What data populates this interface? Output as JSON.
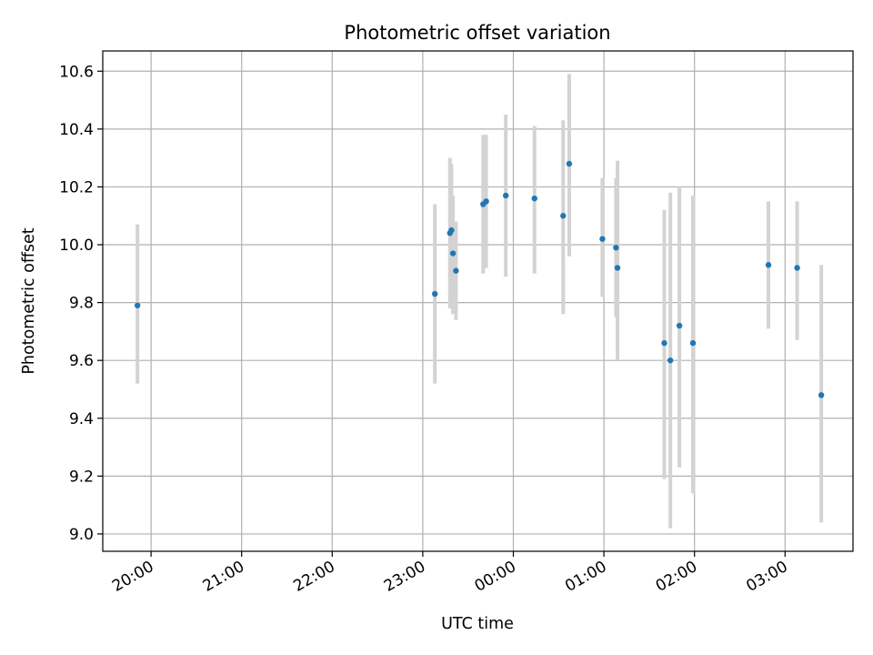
{
  "chart_data": {
    "type": "scatter",
    "title": "Photometric offset variation",
    "xlabel": "UTC time",
    "ylabel": "Photometric offset",
    "xlim": [
      "19:28",
      "03:45"
    ],
    "ylim": [
      8.94,
      10.67
    ],
    "grid": true,
    "x_ticks": [
      "20:00",
      "21:00",
      "22:00",
      "23:00",
      "00:00",
      "01:00",
      "02:00",
      "03:00"
    ],
    "y_ticks": [
      "9.0",
      "9.2",
      "9.4",
      "9.6",
      "9.8",
      "10.0",
      "10.2",
      "10.4",
      "10.6"
    ],
    "colors": {
      "point": "#1f77b4",
      "errorbar": "#d3d3d3",
      "grid": "#b0b0b0"
    },
    "series": [
      {
        "points": [
          {
            "t": "19:51",
            "y": 9.79,
            "lo": 9.52,
            "hi": 10.07
          },
          {
            "t": "23:08",
            "y": 9.83,
            "lo": 9.52,
            "hi": 10.14
          },
          {
            "t": "23:18",
            "y": 10.04,
            "lo": 9.78,
            "hi": 10.3
          },
          {
            "t": "23:19",
            "y": 10.05,
            "lo": 9.8,
            "hi": 10.28
          },
          {
            "t": "23:20",
            "y": 9.97,
            "lo": 9.76,
            "hi": 10.17
          },
          {
            "t": "23:22",
            "y": 9.91,
            "lo": 9.74,
            "hi": 10.08
          },
          {
            "t": "23:40",
            "y": 10.14,
            "lo": 9.9,
            "hi": 10.38
          },
          {
            "t": "23:42",
            "y": 10.15,
            "lo": 9.92,
            "hi": 10.38
          },
          {
            "t": "23:55",
            "y": 10.17,
            "lo": 9.89,
            "hi": 10.45
          },
          {
            "t": "00:14",
            "y": 10.16,
            "lo": 9.9,
            "hi": 10.41
          },
          {
            "t": "00:33",
            "y": 10.1,
            "lo": 9.76,
            "hi": 10.43
          },
          {
            "t": "00:37",
            "y": 10.28,
            "lo": 9.96,
            "hi": 10.59
          },
          {
            "t": "00:59",
            "y": 10.02,
            "lo": 9.82,
            "hi": 10.23
          },
          {
            "t": "01:08",
            "y": 9.99,
            "lo": 9.75,
            "hi": 10.23
          },
          {
            "t": "01:09",
            "y": 9.92,
            "lo": 9.6,
            "hi": 10.29
          },
          {
            "t": "01:40",
            "y": 9.66,
            "lo": 9.19,
            "hi": 10.12
          },
          {
            "t": "01:44",
            "y": 9.6,
            "lo": 9.02,
            "hi": 10.18
          },
          {
            "t": "01:50",
            "y": 9.72,
            "lo": 9.23,
            "hi": 10.2
          },
          {
            "t": "01:59",
            "y": 9.66,
            "lo": 9.14,
            "hi": 10.17
          },
          {
            "t": "02:49",
            "y": 9.93,
            "lo": 9.71,
            "hi": 10.15
          },
          {
            "t": "03:08",
            "y": 9.92,
            "lo": 9.67,
            "hi": 10.15
          },
          {
            "t": "03:24",
            "y": 9.48,
            "lo": 9.04,
            "hi": 9.93
          }
        ]
      }
    ]
  }
}
